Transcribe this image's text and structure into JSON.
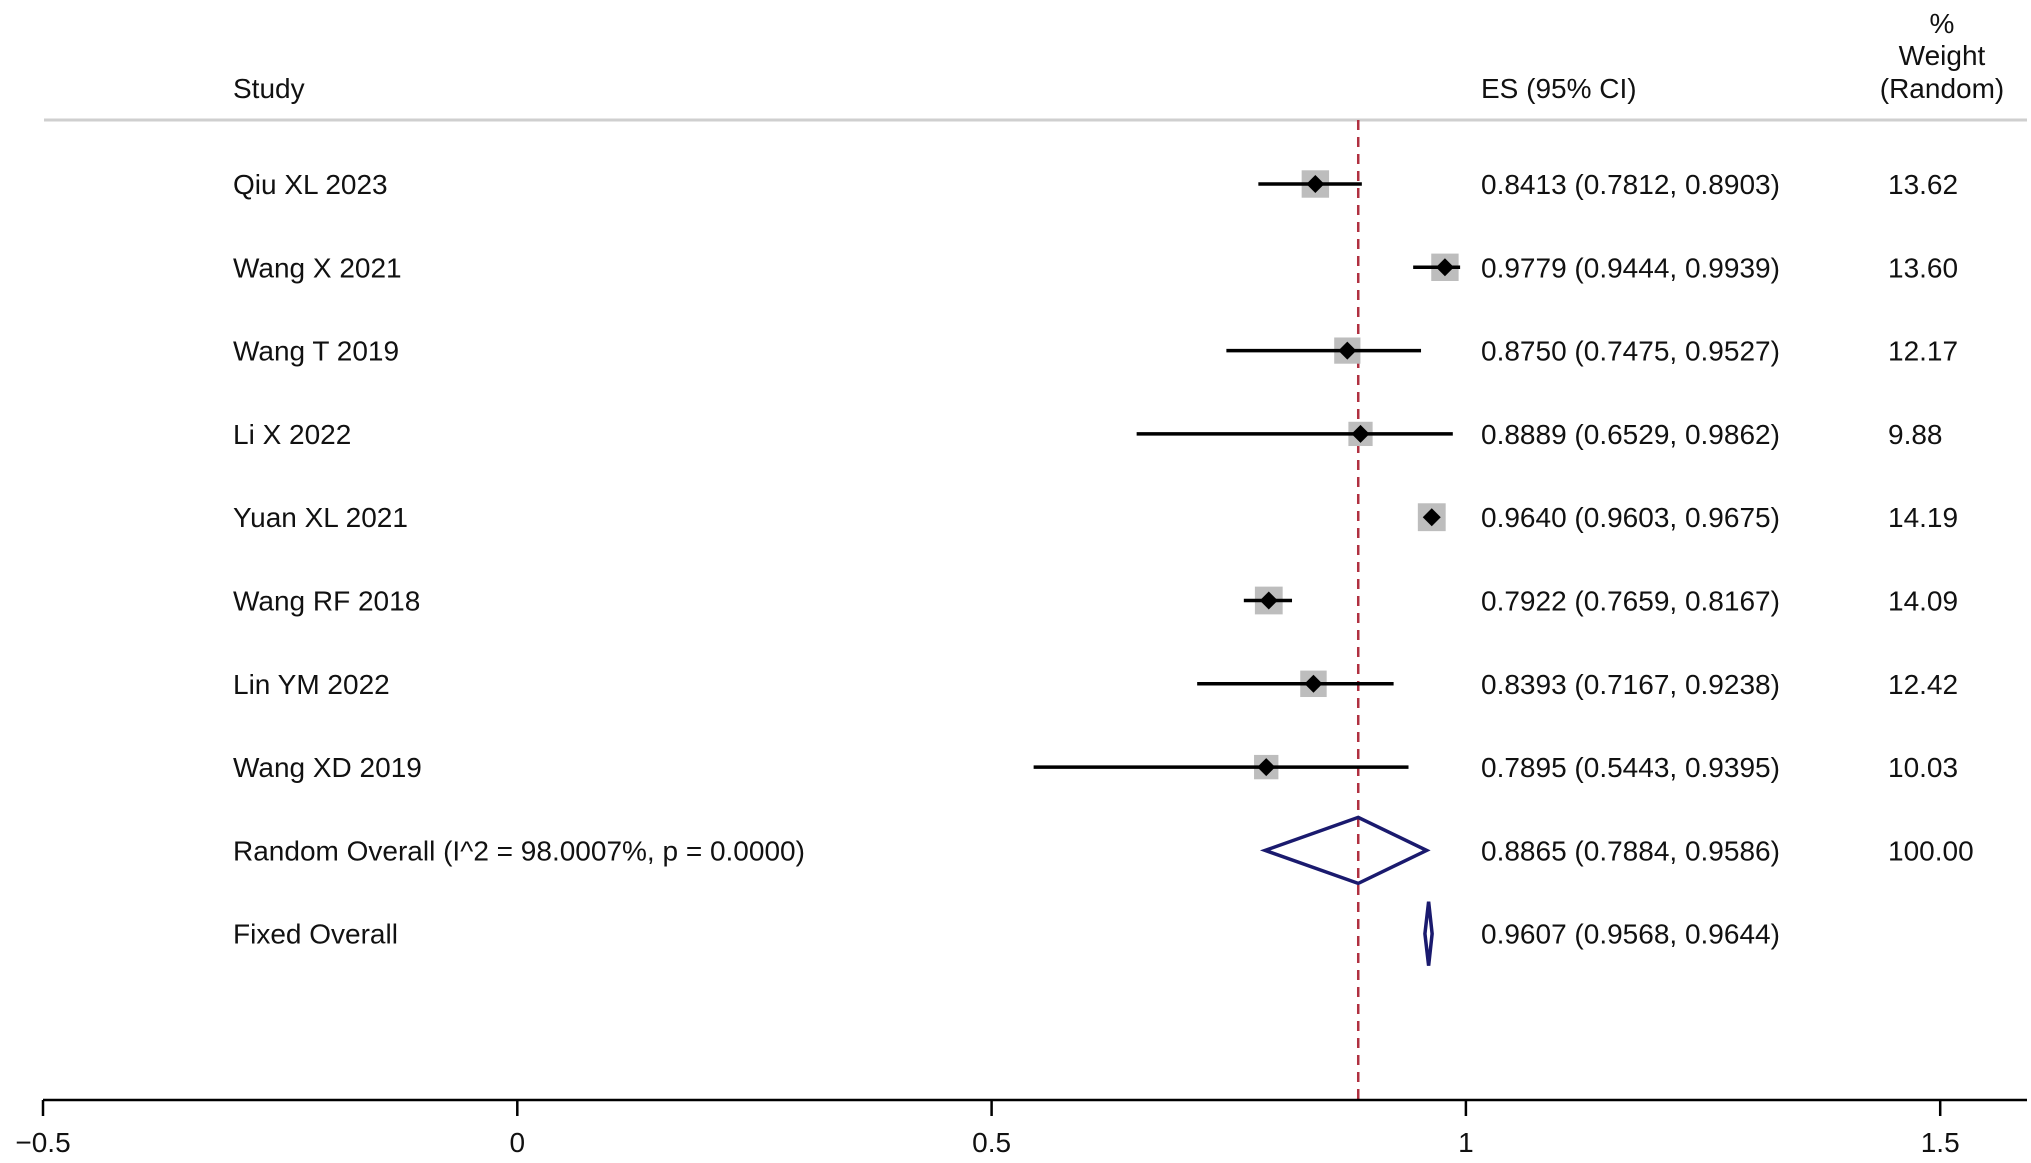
{
  "header": {
    "study": "Study",
    "es": "ES (95% CI)",
    "weight_line1": "%",
    "weight_line2": "Weight",
    "weight_line3": "(Random)"
  },
  "chart_data": {
    "type": "forest",
    "xlim": [
      -0.5,
      1.588
    ],
    "xticks": [
      -0.5,
      0,
      0.5,
      1,
      1.5
    ],
    "xtick_labels": [
      "−0.5",
      "0",
      "0.5",
      "1",
      "1.5"
    ],
    "reference_line": 0.8865,
    "studies": [
      {
        "label": "Qiu XL 2023",
        "es": 0.8413,
        "lo": 0.7812,
        "hi": 0.8903,
        "ci_text": "0.8413 (0.7812, 0.8903)",
        "weight": 13.62,
        "weight_text": "13.62"
      },
      {
        "label": "Wang X 2021",
        "es": 0.9779,
        "lo": 0.9444,
        "hi": 0.9939,
        "ci_text": "0.9779 (0.9444, 0.9939)",
        "weight": 13.6,
        "weight_text": "13.60"
      },
      {
        "label": "Wang T 2019",
        "es": 0.875,
        "lo": 0.7475,
        "hi": 0.9527,
        "ci_text": "0.8750 (0.7475, 0.9527)",
        "weight": 12.17,
        "weight_text": "12.17"
      },
      {
        "label": "Li X 2022",
        "es": 0.8889,
        "lo": 0.6529,
        "hi": 0.9862,
        "ci_text": "0.8889 (0.6529, 0.9862)",
        "weight": 9.88,
        "weight_text": "9.88"
      },
      {
        "label": "Yuan XL 2021",
        "es": 0.964,
        "lo": 0.9603,
        "hi": 0.9675,
        "ci_text": "0.9640 (0.9603, 0.9675)",
        "weight": 14.19,
        "weight_text": "14.19"
      },
      {
        "label": "Wang RF 2018",
        "es": 0.7922,
        "lo": 0.7659,
        "hi": 0.8167,
        "ci_text": "0.7922 (0.7659, 0.8167)",
        "weight": 14.09,
        "weight_text": "14.09"
      },
      {
        "label": "Lin YM 2022",
        "es": 0.8393,
        "lo": 0.7167,
        "hi": 0.9238,
        "ci_text": "0.8393 (0.7167, 0.9238)",
        "weight": 12.42,
        "weight_text": "12.42"
      },
      {
        "label": "Wang XD 2019",
        "es": 0.7895,
        "lo": 0.5443,
        "hi": 0.9395,
        "ci_text": "0.7895 (0.5443, 0.9395)",
        "weight": 10.03,
        "weight_text": "10.03"
      }
    ],
    "overall": [
      {
        "label": "Random Overall  (I^2 = 98.0007%, p = 0.0000)",
        "es": 0.8865,
        "lo": 0.7884,
        "hi": 0.9586,
        "ci_text": "0.8865 (0.7884, 0.9586)",
        "weight_text": "100.00"
      },
      {
        "label": "Fixed Overall",
        "es": 0.9607,
        "lo": 0.9568,
        "hi": 0.9644,
        "ci_text": "0.9607 (0.9568, 0.9644)",
        "weight_text": ""
      }
    ],
    "colors": {
      "ci_line": "#000000",
      "weight_box": "#bdbdbd",
      "point": "#000000",
      "diamond": "#1a1a6e",
      "reference_line": "#b03040",
      "header_rule": "#cfcfcf",
      "axis": "#000000"
    }
  }
}
